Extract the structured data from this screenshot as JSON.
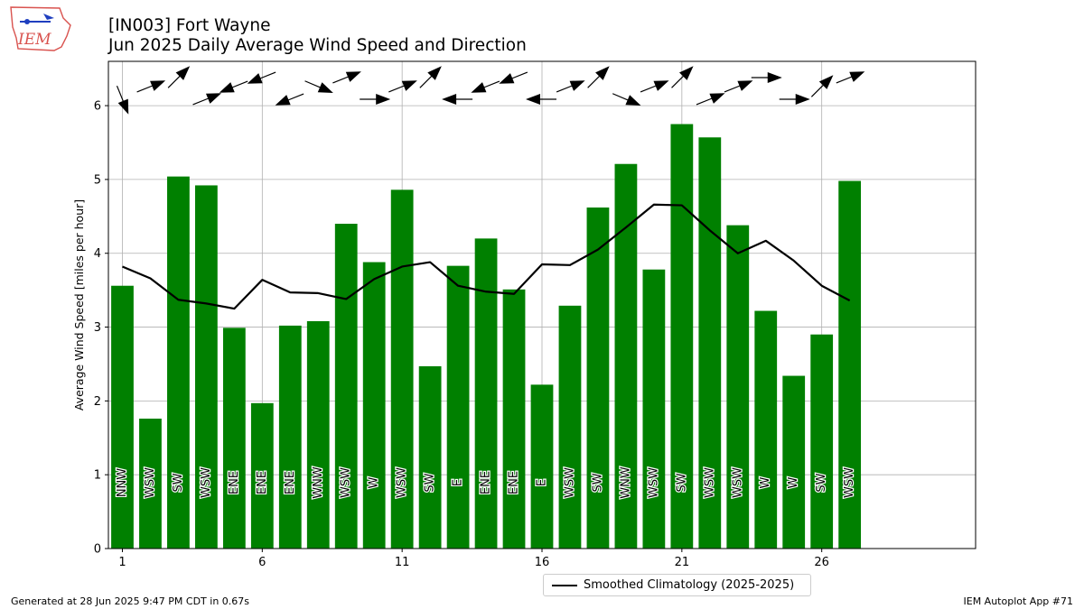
{
  "header": {
    "title": "[IN003] Fort Wayne",
    "subtitle": "Jun 2025 Daily Average Wind Speed and Direction"
  },
  "logo": {
    "text": "IEM"
  },
  "footer": {
    "left": "Generated at 28 Jun 2025 9:47 PM CDT in 0.67s",
    "right": "IEM Autoplot App #71"
  },
  "legend": {
    "label": "Smoothed Climatology (2025-2025)"
  },
  "colors": {
    "bar": "#008000",
    "line": "#000000",
    "grid": "#b0b0b0"
  },
  "chart_data": {
    "type": "bar",
    "ylabel": "Average Wind Speed [miles per hour]",
    "xlim": [
      0.5,
      31.5
    ],
    "ylim": [
      0,
      6.6
    ],
    "xticks": [
      1,
      6,
      11,
      16,
      21,
      26
    ],
    "yticks": [
      0,
      1,
      2,
      3,
      4,
      5,
      6
    ],
    "grid": true,
    "legend_position": "below center",
    "days": [
      1,
      2,
      3,
      4,
      5,
      6,
      7,
      8,
      9,
      10,
      11,
      12,
      13,
      14,
      15,
      16,
      17,
      18,
      19,
      20,
      21,
      22,
      23,
      24,
      25,
      26,
      27
    ],
    "series": [
      {
        "kind": "bar",
        "values": [
          3.56,
          1.76,
          5.04,
          4.92,
          2.99,
          1.97,
          3.02,
          3.08,
          4.4,
          3.88,
          4.86,
          2.47,
          3.83,
          4.2,
          3.51,
          2.22,
          3.29,
          4.62,
          5.21,
          3.78,
          5.75,
          5.57,
          4.38,
          3.22,
          2.34,
          2.9,
          4.98
        ],
        "directions": [
          "NNW",
          "WSW",
          "SW",
          "WSW",
          "ENE",
          "ENE",
          "ENE",
          "WNW",
          "WSW",
          "W",
          "WSW",
          "SW",
          "E",
          "ENE",
          "ENE",
          "E",
          "WSW",
          "SW",
          "WNW",
          "WSW",
          "SW",
          "WSW",
          "WSW",
          "W",
          "W",
          "SW",
          "WSW"
        ],
        "direction_degrees": [
          338,
          248,
          225,
          248,
          68,
          68,
          68,
          293,
          248,
          270,
          248,
          225,
          90,
          68,
          68,
          90,
          248,
          225,
          293,
          248,
          225,
          248,
          248,
          270,
          270,
          225,
          248
        ]
      },
      {
        "kind": "line",
        "name": "Smoothed Climatology (2025-2025)",
        "values": [
          3.82,
          3.66,
          3.37,
          3.32,
          3.25,
          3.64,
          3.47,
          3.46,
          3.38,
          3.65,
          3.82,
          3.88,
          3.56,
          3.48,
          3.45,
          3.85,
          3.84,
          4.05,
          4.35,
          4.66,
          4.65,
          4.31,
          4.0,
          4.17,
          3.9,
          3.56,
          3.36
        ]
      }
    ]
  }
}
